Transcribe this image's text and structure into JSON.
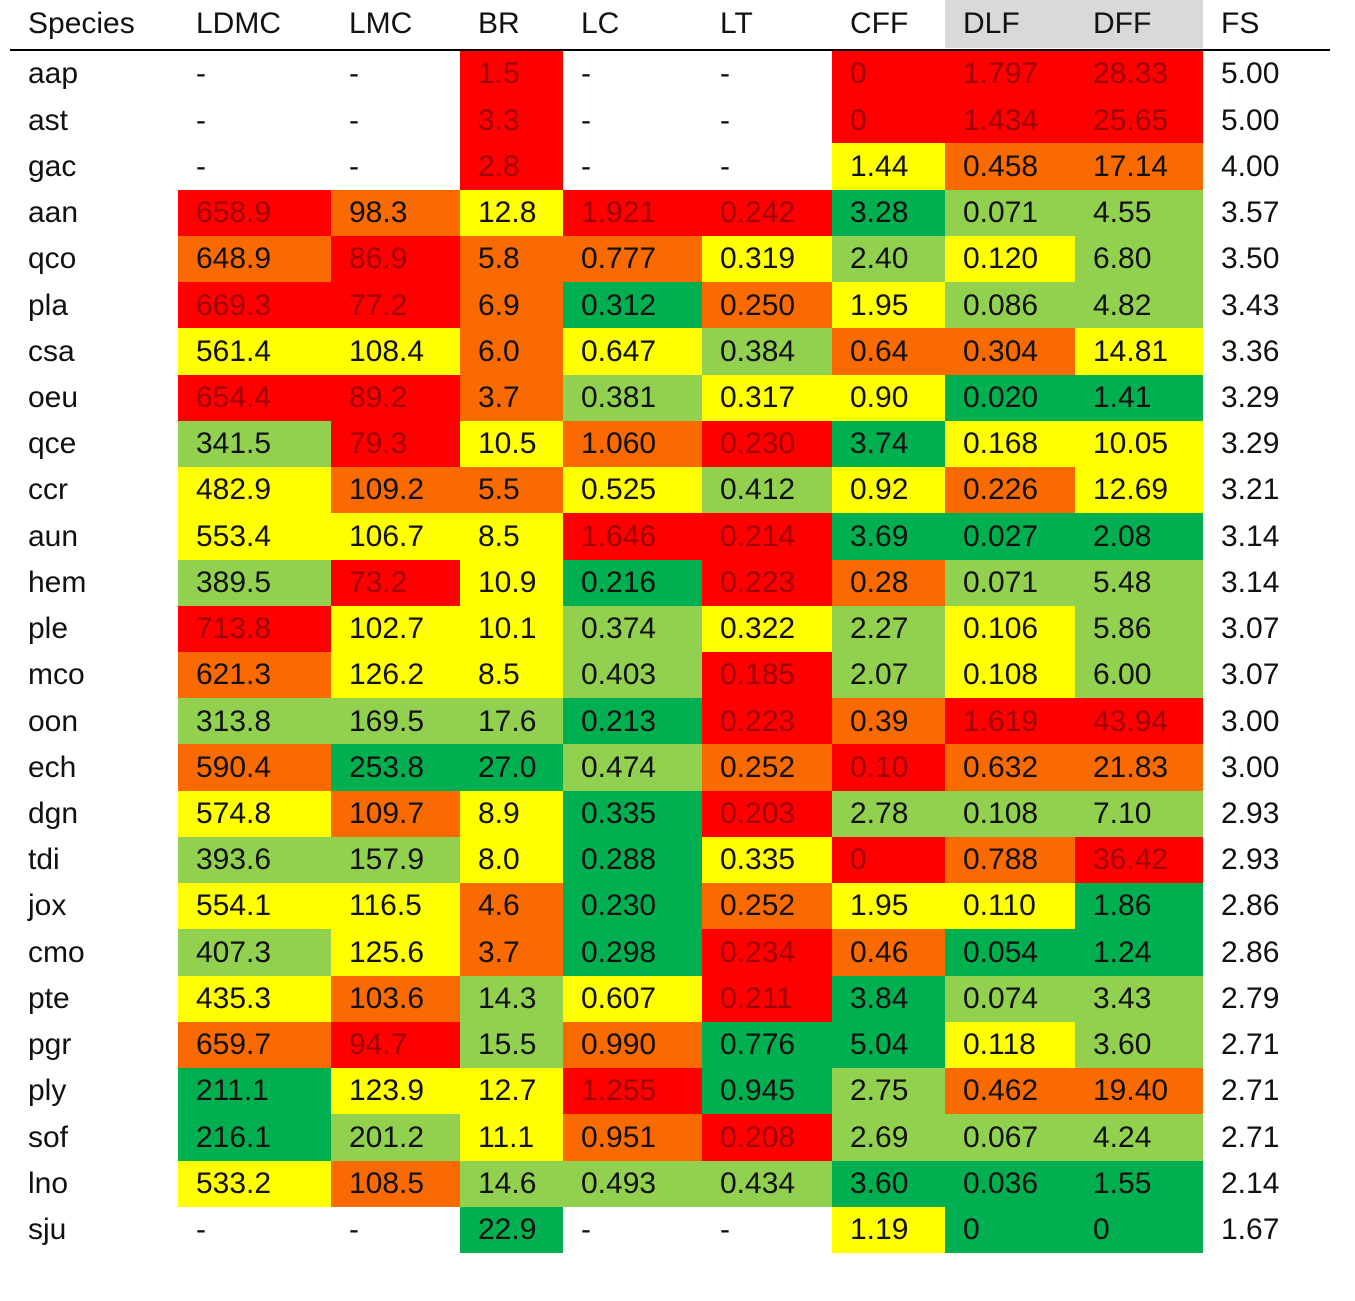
{
  "table": {
    "header": [
      "Species",
      "LDMC",
      "LMC",
      "BR",
      "LC",
      "LT",
      "CFF",
      "DLF",
      "DFF",
      "FS"
    ],
    "shaded_header": [
      "DLF",
      "DFF"
    ],
    "palette": {
      "R": "#ff0000",
      "O": "#f96a00",
      "Y": "#ffff00",
      "L": "#92d050",
      "G": "#00b050"
    },
    "rows": [
      [
        "aap",
        "-",
        "-",
        "1.5",
        "-",
        "-",
        "0",
        "1.797",
        "28.33",
        "5.00"
      ],
      [
        "ast",
        "-",
        "-",
        "3.3",
        "-",
        "-",
        "0",
        "1.434",
        "25.65",
        "5.00"
      ],
      [
        "gac",
        "-",
        "-",
        "2.8",
        "-",
        "-",
        "1.44",
        "0.458",
        "17.14",
        "4.00"
      ],
      [
        "aan",
        "658.9",
        "98.3",
        "12.8",
        "1.921",
        "0.242",
        "3.28",
        "0.071",
        "4.55",
        "3.57"
      ],
      [
        "qco",
        "648.9",
        "86.9",
        "5.8",
        "0.777",
        "0.319",
        "2.40",
        "0.120",
        "6.80",
        "3.50"
      ],
      [
        "pla",
        "669.3",
        "77.2",
        "6.9",
        "0.312",
        "0.250",
        "1.95",
        "0.086",
        "4.82",
        "3.43"
      ],
      [
        "csa",
        "561.4",
        "108.4",
        "6.0",
        "0.647",
        "0.384",
        "0.64",
        "0.304",
        "14.81",
        "3.36"
      ],
      [
        "oeu",
        "654.4",
        "89.2",
        "3.7",
        "0.381",
        "0.317",
        "0.90",
        "0.020",
        "1.41",
        "3.29"
      ],
      [
        "qce",
        "341.5",
        "79.3",
        "10.5",
        "1.060",
        "0.230",
        "3.74",
        "0.168",
        "10.05",
        "3.29"
      ],
      [
        "ccr",
        "482.9",
        "109.2",
        "5.5",
        "0.525",
        "0.412",
        "0.92",
        "0.226",
        "12.69",
        "3.21"
      ],
      [
        "aun",
        "553.4",
        "106.7",
        "8.5",
        "1.646",
        "0.214",
        "3.69",
        "0.027",
        "2.08",
        "3.14"
      ],
      [
        "hem",
        "389.5",
        "73.2",
        "10.9",
        "0.216",
        "0.223",
        "0.28",
        "0.071",
        "5.48",
        "3.14"
      ],
      [
        "ple",
        "713.8",
        "102.7",
        "10.1",
        "0.374",
        "0.322",
        "2.27",
        "0.106",
        "5.86",
        "3.07"
      ],
      [
        "mco",
        "621.3",
        "126.2",
        "8.5",
        "0.403",
        "0.185",
        "2.07",
        "0.108",
        "6.00",
        "3.07"
      ],
      [
        "oon",
        "313.8",
        "169.5",
        "17.6",
        "0.213",
        "0.223",
        "0.39",
        "1.619",
        "43.94",
        "3.00"
      ],
      [
        "ech",
        "590.4",
        "253.8",
        "27.0",
        "0.474",
        "0.252",
        "0.10",
        "0.632",
        "21.83",
        "3.00"
      ],
      [
        "dgn",
        "574.8",
        "109.7",
        "8.9",
        "0.335",
        "0.203",
        "2.78",
        "0.108",
        "7.10",
        "2.93"
      ],
      [
        "tdi",
        "393.6",
        "157.9",
        "8.0",
        "0.288",
        "0.335",
        "0",
        "0.788",
        "36.42",
        "2.93"
      ],
      [
        "jox",
        "554.1",
        "116.5",
        "4.6",
        "0.230",
        "0.252",
        "1.95",
        "0.110",
        "1.86",
        "2.86"
      ],
      [
        "cmo",
        "407.3",
        "125.6",
        "3.7",
        "0.298",
        "0.234",
        "0.46",
        "0.054",
        "1.24",
        "2.86"
      ],
      [
        "pte",
        "435.3",
        "103.6",
        "14.3",
        "0.607",
        "0.211",
        "3.84",
        "0.074",
        "3.43",
        "2.79"
      ],
      [
        "pgr",
        "659.7",
        "94.7",
        "15.5",
        "0.990",
        "0.776",
        "5.04",
        "0.118",
        "3.60",
        "2.71"
      ],
      [
        "ply",
        "211.1",
        "123.9",
        "12.7",
        "1.255",
        "0.945",
        "2.75",
        "0.462",
        "19.40",
        "2.71"
      ],
      [
        "sof",
        "216.1",
        "201.2",
        "11.1",
        "0.951",
        "0.208",
        "2.69",
        "0.067",
        "4.24",
        "2.71"
      ],
      [
        "lno",
        "533.2",
        "108.5",
        "14.6",
        "0.493",
        "0.434",
        "3.60",
        "0.036",
        "1.55",
        "2.14"
      ],
      [
        "sju",
        "-",
        "-",
        "22.9",
        "-",
        "-",
        "1.19",
        "0",
        "0",
        "1.67"
      ]
    ],
    "fills": [
      [
        null,
        null,
        "R",
        null,
        null,
        "R",
        "R",
        "R"
      ],
      [
        null,
        null,
        "R",
        null,
        null,
        "R",
        "R",
        "R"
      ],
      [
        null,
        null,
        "R",
        null,
        null,
        "Y",
        "O",
        "O"
      ],
      [
        "R",
        "O",
        "Y",
        "R",
        "R",
        "G",
        "L",
        "L"
      ],
      [
        "O",
        "R",
        "O",
        "O",
        "Y",
        "L",
        "Y",
        "L"
      ],
      [
        "R",
        "R",
        "O",
        "G",
        "O",
        "Y",
        "L",
        "L"
      ],
      [
        "Y",
        "Y",
        "O",
        "Y",
        "L",
        "O",
        "O",
        "Y"
      ],
      [
        "R",
        "R",
        "O",
        "L",
        "Y",
        "Y",
        "G",
        "G"
      ],
      [
        "L",
        "R",
        "Y",
        "O",
        "R",
        "G",
        "Y",
        "Y"
      ],
      [
        "Y",
        "O",
        "O",
        "Y",
        "L",
        "Y",
        "O",
        "Y"
      ],
      [
        "Y",
        "Y",
        "Y",
        "R",
        "R",
        "G",
        "G",
        "G"
      ],
      [
        "L",
        "R",
        "Y",
        "G",
        "R",
        "O",
        "L",
        "L"
      ],
      [
        "R",
        "Y",
        "Y",
        "L",
        "Y",
        "L",
        "Y",
        "L"
      ],
      [
        "O",
        "Y",
        "Y",
        "L",
        "R",
        "L",
        "Y",
        "L"
      ],
      [
        "L",
        "L",
        "L",
        "G",
        "R",
        "O",
        "R",
        "R"
      ],
      [
        "O",
        "G",
        "G",
        "L",
        "O",
        "R",
        "O",
        "O"
      ],
      [
        "Y",
        "O",
        "Y",
        "G",
        "R",
        "L",
        "L",
        "L"
      ],
      [
        "L",
        "L",
        "Y",
        "G",
        "Y",
        "R",
        "O",
        "R"
      ],
      [
        "Y",
        "Y",
        "O",
        "G",
        "O",
        "Y",
        "Y",
        "G"
      ],
      [
        "L",
        "Y",
        "O",
        "G",
        "R",
        "O",
        "G",
        "G"
      ],
      [
        "Y",
        "O",
        "L",
        "Y",
        "R",
        "G",
        "L",
        "L"
      ],
      [
        "O",
        "R",
        "L",
        "O",
        "G",
        "G",
        "Y",
        "L"
      ],
      [
        "G",
        "Y",
        "Y",
        "R",
        "G",
        "L",
        "O",
        "O"
      ],
      [
        "G",
        "L",
        "Y",
        "O",
        "R",
        "L",
        "L",
        "L"
      ],
      [
        "Y",
        "O",
        "L",
        "L",
        "L",
        "G",
        "G",
        "G"
      ],
      [
        null,
        null,
        "G",
        null,
        null,
        "Y",
        "G",
        "G"
      ]
    ]
  }
}
